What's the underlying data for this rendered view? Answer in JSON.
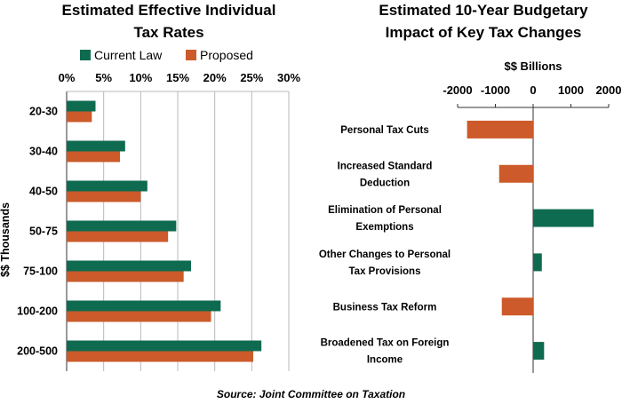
{
  "colors": {
    "current": "#0f6b4f",
    "proposed": "#cc5a2a",
    "grid": "#b8b8b8",
    "axis": "#333333"
  },
  "chart_data": [
    {
      "type": "bar",
      "orientation": "horizontal",
      "title_lines": [
        "Estimated Effective Individual",
        "Tax Rates"
      ],
      "ylabel": "$$ Thousands",
      "xticks": [
        "0%",
        "5%",
        "10%",
        "15%",
        "20%",
        "25%",
        "30%"
      ],
      "xlim": [
        0,
        30
      ],
      "grid": true,
      "legend_position": "top",
      "categories": [
        "20-30",
        "30-40",
        "40-50",
        "50-75",
        "75-100",
        "100-200",
        "200-500"
      ],
      "series": [
        {
          "name": "Current Law",
          "values": [
            3.9,
            7.9,
            10.9,
            14.8,
            16.8,
            20.8,
            26.3
          ]
        },
        {
          "name": "Proposed",
          "values": [
            3.4,
            7.2,
            10.0,
            13.7,
            15.8,
            19.5,
            25.2
          ]
        }
      ]
    },
    {
      "type": "bar",
      "orientation": "horizontal",
      "title_lines": [
        "Estimated 10-Year Budgetary",
        "Impact of Key Tax Changes"
      ],
      "xlabel": "$$ Billions",
      "xticks": [
        "-2000",
        "-1000",
        "0",
        "1000",
        "2000"
      ],
      "xlim": [
        -2000,
        2000
      ],
      "grid": false,
      "categories": [
        [
          "Personal Tax Cuts"
        ],
        [
          "Increased Standard",
          "Deduction"
        ],
        [
          "Elimination of Personal",
          "Exemptions"
        ],
        [
          "Other Changes to Personal",
          "Tax Provisions"
        ],
        [
          "Business Tax Reform"
        ],
        [
          "Broadened Tax on Foreign",
          "Income"
        ]
      ],
      "values": [
        -1750,
        -900,
        1600,
        230,
        -830,
        290
      ]
    }
  ],
  "source": "Source: Joint Committee on Taxation"
}
